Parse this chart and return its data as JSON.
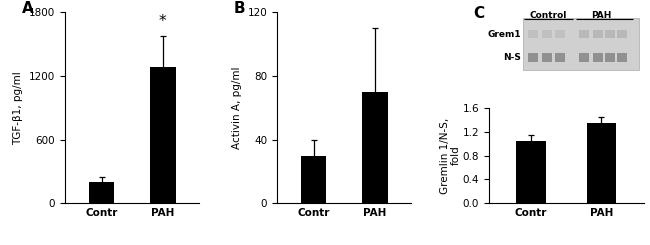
{
  "panel_A": {
    "label": "A",
    "categories": [
      "Contr",
      "PAH"
    ],
    "values": [
      200,
      1280
    ],
    "errors": [
      50,
      300
    ],
    "ylabel": "TGF-β1, pg/ml",
    "ylim": [
      0,
      1800
    ],
    "yticks": [
      0,
      600,
      1200,
      1800
    ],
    "bar_color": "#000000",
    "significance": "*",
    "sig_bar_index": 1
  },
  "panel_B": {
    "label": "B",
    "categories": [
      "Contr",
      "PAH"
    ],
    "values": [
      30,
      70
    ],
    "errors": [
      10,
      40
    ],
    "ylabel": "Activin A, pg/ml",
    "ylim": [
      0,
      120
    ],
    "yticks": [
      0,
      40,
      80,
      120
    ],
    "bar_color": "#000000"
  },
  "panel_C": {
    "label": "C",
    "categories": [
      "Contr",
      "PAH"
    ],
    "values": [
      1.05,
      1.35
    ],
    "errors": [
      0.1,
      0.1
    ],
    "ylabel": "Gremlin 1/N-S,\nfold",
    "ylim": [
      0,
      1.6
    ],
    "yticks": [
      0,
      0.4,
      0.8,
      1.2,
      1.6
    ],
    "bar_color": "#000000",
    "wb_label_control": "Control",
    "wb_label_pah": "PAH",
    "wb_row1": "Grem1",
    "wb_row2": "N-S"
  },
  "figure": {
    "bg_color": "#ffffff",
    "font_size": 7.5,
    "bar_width": 0.42,
    "label_fontsize": 11
  }
}
